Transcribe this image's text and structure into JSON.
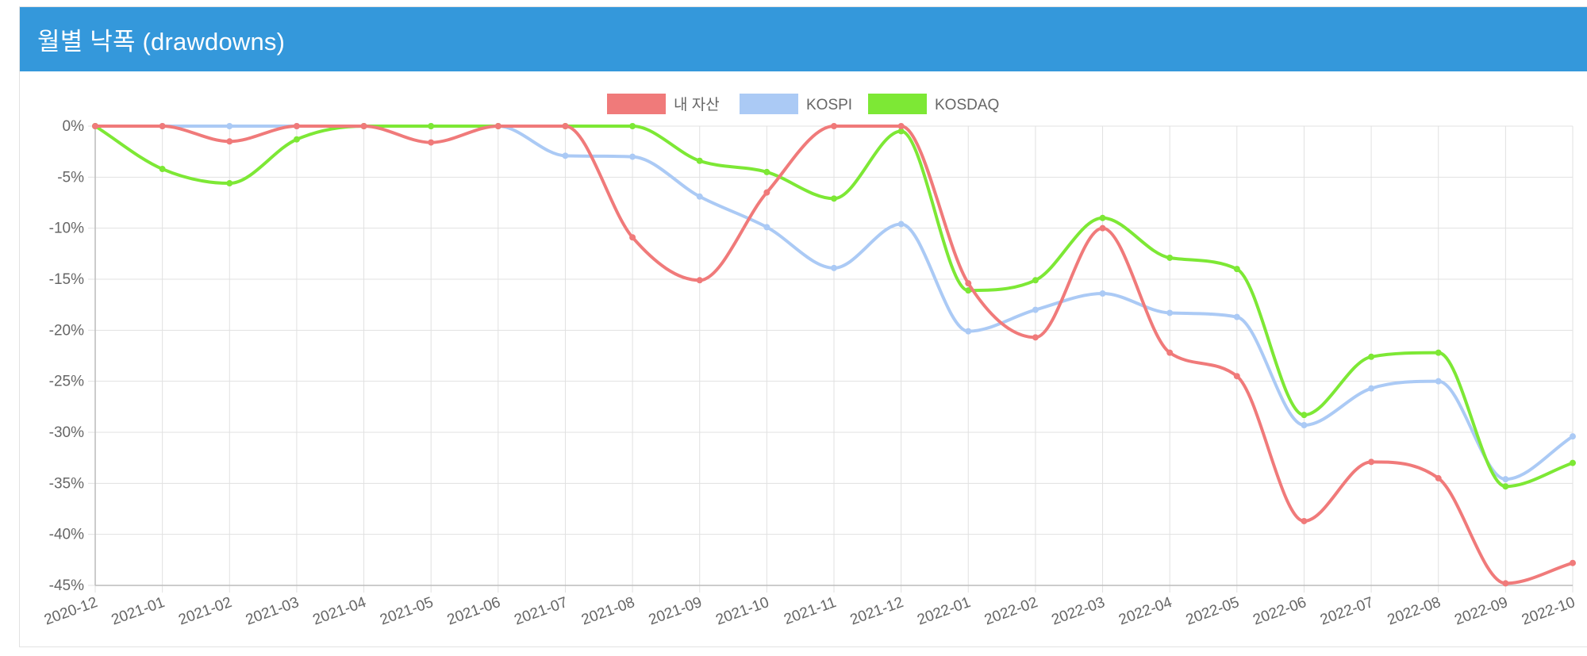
{
  "card": {
    "title": "월별 낙폭 (drawdowns)"
  },
  "colors": {
    "header": "#3498db",
    "series": [
      "#f07a7a",
      "#abcaf5",
      "#7de835"
    ],
    "grid": "#e1e1e1",
    "axis": "#bcbcbc",
    "text": "#666666"
  },
  "chart_data": {
    "type": "line",
    "title": "",
    "xlabel": "",
    "ylabel": "",
    "ylim": [
      -45,
      0
    ],
    "y_ticks": [
      "0%",
      "-5%",
      "-10%",
      "-15%",
      "-20%",
      "-25%",
      "-30%",
      "-35%",
      "-40%",
      "-45%"
    ],
    "y_tick_values": [
      0,
      -5,
      -10,
      -15,
      -20,
      -25,
      -30,
      -35,
      -40,
      -45
    ],
    "grid": true,
    "legend_position": "top-center",
    "categories": [
      "2020-12",
      "2021-01",
      "2021-02",
      "2021-03",
      "2021-04",
      "2021-05",
      "2021-06",
      "2021-07",
      "2021-08",
      "2021-09",
      "2021-10",
      "2021-11",
      "2021-12",
      "2022-01",
      "2022-02",
      "2022-03",
      "2022-04",
      "2022-05",
      "2022-06",
      "2022-07",
      "2022-08",
      "2022-09",
      "2022-10"
    ],
    "series": [
      {
        "name": "내 자산",
        "color": "#f07a7a",
        "values": [
          0,
          0,
          -1.5,
          0,
          0,
          -1.6,
          0,
          0,
          -10.9,
          -15.1,
          -6.5,
          0,
          0,
          -15.4,
          -20.7,
          -10,
          -22.2,
          -24.5,
          -38.7,
          -32.9,
          -34.5,
          -44.8,
          -42.8
        ]
      },
      {
        "name": "KOSPI",
        "color": "#abcaf5",
        "values": [
          0,
          0,
          0,
          0,
          0,
          0,
          0,
          -2.9,
          -3,
          -6.9,
          -9.9,
          -13.9,
          -9.6,
          -20.1,
          -18,
          -16.4,
          -18.3,
          -18.7,
          -29.3,
          -25.7,
          -25,
          -34.6,
          -30.4
        ]
      },
      {
        "name": "KOSDAQ",
        "color": "#7de835",
        "values": [
          0,
          -4.2,
          -5.6,
          -1.3,
          0,
          0,
          0,
          0,
          0,
          -3.4,
          -4.5,
          -7.1,
          -0.5,
          -16.1,
          -15.1,
          -9,
          -12.9,
          -14,
          -28.3,
          -22.6,
          -22.2,
          -35.3,
          -33
        ]
      }
    ]
  }
}
